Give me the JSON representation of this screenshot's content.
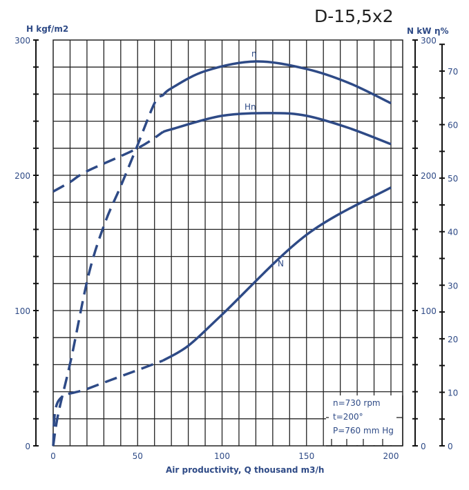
{
  "chart_data": {
    "type": "line",
    "title": "D-15,5x2",
    "xlabel": "Air productivity, Q thousand m3/h",
    "xlim": [
      0,
      207
    ],
    "x_ticks": [
      "0",
      "50",
      "100",
      "150",
      "200"
    ],
    "axes": {
      "left": {
        "label": "H kgf/m2",
        "ylim": [
          0,
          300
        ],
        "ticks": [
          "0",
          "100",
          "200",
          "300"
        ]
      },
      "right_n": {
        "label": "N kW",
        "ylim": [
          0,
          300
        ],
        "ticks": [
          "0",
          "100",
          "200",
          "300"
        ]
      },
      "right_eta": {
        "label": "η%",
        "ylim": [
          0,
          75
        ],
        "ticks": [
          "0",
          "10",
          "20",
          "30",
          "40",
          "50",
          "60",
          "70"
        ]
      }
    },
    "grid": true,
    "series": [
      {
        "name": "Hn",
        "axis": "left",
        "dashed_until": 65,
        "x": [
          0,
          10,
          20,
          50,
          65,
          70,
          100,
          130,
          150,
          175,
          200
        ],
        "y": [
          188,
          195,
          203,
          220,
          232,
          234,
          244,
          246,
          244,
          235,
          223
        ]
      },
      {
        "name": "η",
        "axis": "right_eta",
        "dashed_until": 65,
        "x": [
          0,
          3,
          10.6,
          21,
          30.6,
          40,
          49.5,
          60,
          65,
          70,
          90,
          120,
          150,
          175,
          200
        ],
        "y": [
          0,
          6,
          16.2,
          32,
          41.6,
          48.5,
          55.8,
          64,
          65.5,
          66.8,
          70,
          71.8,
          70.4,
          67.8,
          64
        ]
      },
      {
        "name": "N",
        "axis": "right_n",
        "dashed_until": 65,
        "x": [
          0,
          3,
          20,
          50,
          65,
          80,
          100,
          150,
          200
        ],
        "y": [
          0,
          33,
          42,
          56,
          63,
          74,
          97,
          156,
          191
        ]
      }
    ],
    "annotations": [
      "n=730 rpm",
      "t=200°",
      "P=760 mm Hg"
    ],
    "colors": {
      "curve": "#2e4a86",
      "grid": "#222222",
      "text": "#2e4a86"
    }
  }
}
